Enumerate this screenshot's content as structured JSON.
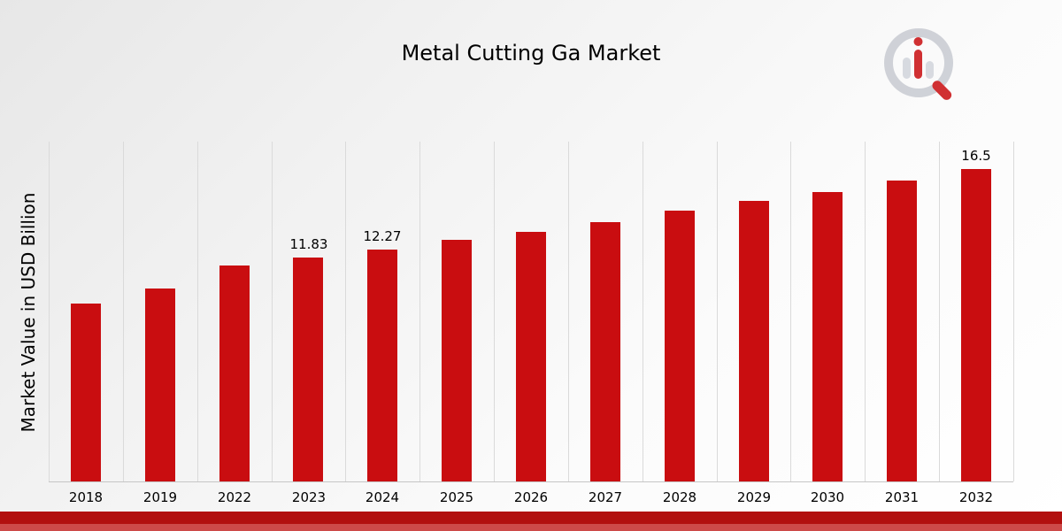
{
  "title": "Metal Cutting Ga Market",
  "ylabel": "Market Value in USD Billion",
  "chart_data": {
    "type": "bar",
    "title": "Metal Cutting Ga Market",
    "xlabel": "",
    "ylabel": "Market Value in USD Billion",
    "categories": [
      "2018",
      "2019",
      "2022",
      "2023",
      "2024",
      "2025",
      "2026",
      "2027",
      "2028",
      "2029",
      "2030",
      "2031",
      "2032"
    ],
    "values": [
      9.4,
      10.2,
      11.4,
      11.83,
      12.27,
      12.75,
      13.2,
      13.7,
      14.3,
      14.8,
      15.3,
      15.9,
      16.5
    ],
    "bar_labels": [
      "",
      "",
      "",
      "11.83",
      "12.27",
      "",
      "",
      "",
      "",
      "",
      "",
      "",
      "16.5"
    ],
    "ylim": [
      0,
      18
    ],
    "grid": "vertical-only",
    "legend": "none",
    "bar_color": "#c90d10",
    "gridline_color": "#dadada"
  },
  "footer": {
    "ribbon_top_color": "#b2100f",
    "ribbon_bottom_color": "#cd4a49"
  },
  "logo": {
    "name": "market-research-watermark-logo",
    "ring_color": "#c8cbd2",
    "accent_color": "#c90d10"
  }
}
